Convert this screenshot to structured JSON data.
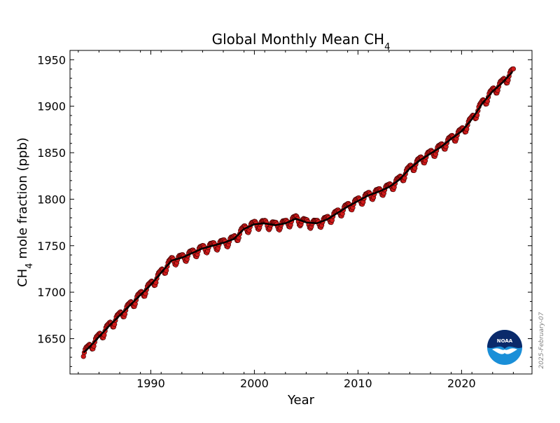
{
  "chart_data": {
    "type": "scatter",
    "title_main": "Global Monthly Mean CH",
    "title_sub": "4",
    "xlabel": "Year",
    "ylabel_main": "CH",
    "ylabel_sub": "4",
    "ylabel_rest": " mole fraction (ppb)",
    "xlim": [
      1982.2,
      2026.8
    ],
    "ylim": [
      1612,
      1960
    ],
    "xticks": [
      1990,
      2000,
      2010,
      2020
    ],
    "yticks": [
      1650,
      1700,
      1750,
      1800,
      1850,
      1900,
      1950
    ],
    "grid": false,
    "stamp": "2025-February-07",
    "logo_text": "NOAA",
    "colors": {
      "monthly_marker": "#d11a1a",
      "marker_edge": "#3a0000",
      "trend_line": "#000000",
      "logo_navy": "#0a2a6b",
      "logo_blue": "#1a8fd8"
    },
    "series": [
      {
        "kind": "monthly_mean",
        "note_points": "Monthly means generated from trend anchors plus seasonal cycle",
        "start_year": 1983.5,
        "end_year": 2025.0
      },
      {
        "kind": "trend",
        "x": [
          1983.5,
          1984,
          1985,
          1986,
          1987,
          1988,
          1989,
          1990,
          1991,
          1992,
          1993,
          1994,
          1995,
          1996,
          1997,
          1998,
          1999,
          2000,
          2001,
          2002,
          2003,
          2004,
          2005,
          2006,
          2007,
          2008,
          2009,
          2010,
          2011,
          2012,
          2013,
          2014,
          2015,
          2016,
          2017,
          2018,
          2019,
          2020,
          2021,
          2022,
          2023,
          2024,
          2024.9
        ],
        "y": [
          1635,
          1640,
          1652,
          1664,
          1675,
          1686,
          1697,
          1708,
          1721,
          1734,
          1737,
          1742,
          1747,
          1750,
          1753,
          1757,
          1768,
          1773,
          1774,
          1772,
          1774,
          1779,
          1775,
          1774,
          1778,
          1785,
          1792,
          1798,
          1804,
          1808,
          1813,
          1821,
          1833,
          1842,
          1849,
          1856,
          1865,
          1873,
          1886,
          1903,
          1916,
          1926,
          1937
        ]
      }
    ]
  }
}
